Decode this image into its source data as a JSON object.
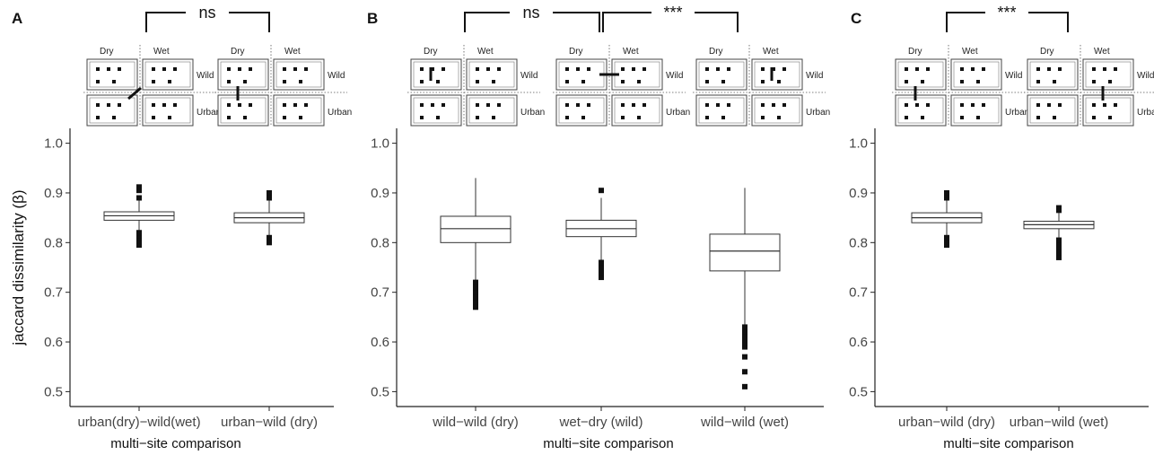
{
  "chart_data": [
    {
      "type": "box",
      "panel_label": "A",
      "ylabel": "jaccard dissimilarity (β)",
      "xlabel": "multi−site comparison",
      "ylim": [
        0.47,
        1.03
      ],
      "yticks": [
        0.5,
        0.6,
        0.7,
        0.8,
        0.9,
        1.0
      ],
      "ytick_labels": [
        "0.5",
        "0.6",
        "0.7",
        "0.8",
        "0.9",
        "1.0"
      ],
      "categories": [
        "urban(dry)−wild(wet)",
        "urban−wild (dry)"
      ],
      "boxes": [
        {
          "q1": 0.845,
          "median": 0.854,
          "q3": 0.862,
          "whisker_low": 0.825,
          "whisker_high": 0.885,
          "outliers": [
            0.8,
            0.795,
            0.81,
            0.815,
            0.82,
            0.89,
            0.905,
            0.912
          ]
        },
        {
          "q1": 0.84,
          "median": 0.85,
          "q3": 0.86,
          "whisker_low": 0.815,
          "whisker_high": 0.885,
          "outliers": [
            0.8,
            0.805,
            0.81,
            0.89,
            0.895,
            0.9
          ]
        }
      ],
      "comparisons": [
        {
          "from": 0,
          "to": 1,
          "label": "ns"
        }
      ],
      "column_labels": [
        "Dry",
        "Wet"
      ],
      "row_labels": [
        "Wild",
        "Urban"
      ]
    },
    {
      "type": "box",
      "panel_label": "B",
      "xlabel": "multi−site comparison",
      "ylim": [
        0.47,
        1.03
      ],
      "yticks": [
        0.5,
        0.6,
        0.7,
        0.8,
        0.9,
        1.0
      ],
      "ytick_labels": [
        "0.5",
        "0.6",
        "0.7",
        "0.8",
        "0.9",
        "1.0"
      ],
      "categories": [
        "wild−wild (dry)",
        "wet−dry (wild)",
        "wild−wild (wet)"
      ],
      "boxes": [
        {
          "q1": 0.8,
          "median": 0.828,
          "q3": 0.853,
          "whisker_low": 0.725,
          "whisker_high": 0.93,
          "outliers": [
            0.67,
            0.675,
            0.68,
            0.69,
            0.7,
            0.71,
            0.72
          ]
        },
        {
          "q1": 0.812,
          "median": 0.828,
          "q3": 0.845,
          "whisker_low": 0.765,
          "whisker_high": 0.89,
          "outliers": [
            0.73,
            0.74,
            0.75,
            0.76,
            0.905
          ]
        },
        {
          "q1": 0.743,
          "median": 0.783,
          "q3": 0.817,
          "whisker_low": 0.635,
          "whisker_high": 0.91,
          "outliers": [
            0.51,
            0.54,
            0.57,
            0.59,
            0.6,
            0.61,
            0.62,
            0.63
          ]
        }
      ],
      "comparisons": [
        {
          "from": 0,
          "to": 1,
          "label": "ns"
        },
        {
          "from": 1,
          "to": 2,
          "label": "***"
        }
      ],
      "column_labels": [
        "Dry",
        "Wet"
      ],
      "row_labels": [
        "Wild",
        "Urban"
      ]
    },
    {
      "type": "box",
      "panel_label": "C",
      "xlabel": "multi−site comparison",
      "ylim": [
        0.47,
        1.03
      ],
      "yticks": [
        0.5,
        0.6,
        0.7,
        0.8,
        0.9,
        1.0
      ],
      "ytick_labels": [
        "0.5",
        "0.6",
        "0.7",
        "0.8",
        "0.9",
        "1.0"
      ],
      "categories": [
        "urban−wild (dry)",
        "urban−wild (wet)"
      ],
      "boxes": [
        {
          "q1": 0.84,
          "median": 0.85,
          "q3": 0.86,
          "whisker_low": 0.815,
          "whisker_high": 0.885,
          "outliers": [
            0.795,
            0.8,
            0.81,
            0.89,
            0.895,
            0.9
          ]
        },
        {
          "q1": 0.828,
          "median": 0.836,
          "q3": 0.843,
          "whisker_low": 0.81,
          "whisker_high": 0.86,
          "outliers": [
            0.77,
            0.78,
            0.79,
            0.8,
            0.805,
            0.865,
            0.87
          ]
        }
      ],
      "comparisons": [
        {
          "from": 0,
          "to": 1,
          "label": "***"
        }
      ],
      "column_labels": [
        "Dry",
        "Wet"
      ],
      "row_labels": [
        "Wild",
        "Urban"
      ]
    }
  ],
  "colors": {
    "axis": "#222222",
    "box": "#333333",
    "outlier": "#111111",
    "bracket": "#111111"
  }
}
